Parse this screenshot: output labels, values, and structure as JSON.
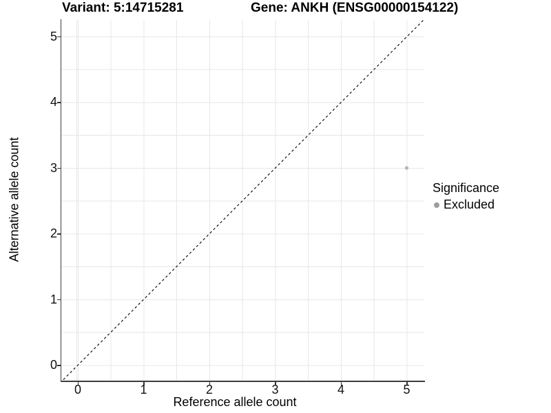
{
  "header": {
    "variant_title": "Variant: 5:14715281",
    "gene_title": "Gene: ANKH (ENSG00000154122)"
  },
  "chart_data": {
    "type": "scatter",
    "title_left": "Variant: 5:14715281",
    "title_right": "Gene: ANKH (ENSG00000154122)",
    "xlabel": "Reference allele count",
    "ylabel": "Alternative allele count",
    "xlim": [
      -0.25,
      5.25
    ],
    "ylim": [
      -0.25,
      5.25
    ],
    "x_ticks": [
      0,
      1,
      2,
      3,
      4,
      5
    ],
    "y_ticks": [
      0,
      1,
      2,
      3,
      4,
      5
    ],
    "x_tick_labels": [
      "0",
      "1",
      "2",
      "3",
      "4",
      "5"
    ],
    "y_tick_labels": [
      "0",
      "1",
      "2",
      "3",
      "4",
      "5"
    ],
    "grid": "lines every 0.5 units, both axes, light gray",
    "points": [
      {
        "x": 5,
        "y": 3,
        "series": "Excluded"
      }
    ],
    "annotations": [
      {
        "type": "line",
        "equation": "y = x",
        "style": "dashed",
        "color": "#000000"
      }
    ],
    "legend": {
      "title": "Significance",
      "position": "right",
      "entries": [
        {
          "label": "Excluded",
          "marker": "circle",
          "color": "#9e9e9e"
        }
      ]
    }
  },
  "colors": {
    "background": "#ffffff",
    "gridline": "#e7e7e7",
    "axis_line": "#3c3c3c",
    "point_excluded": "#b5b5b5",
    "legend_dot": "#9e9e9e",
    "identity_line": "#111111",
    "text": "#000000"
  }
}
